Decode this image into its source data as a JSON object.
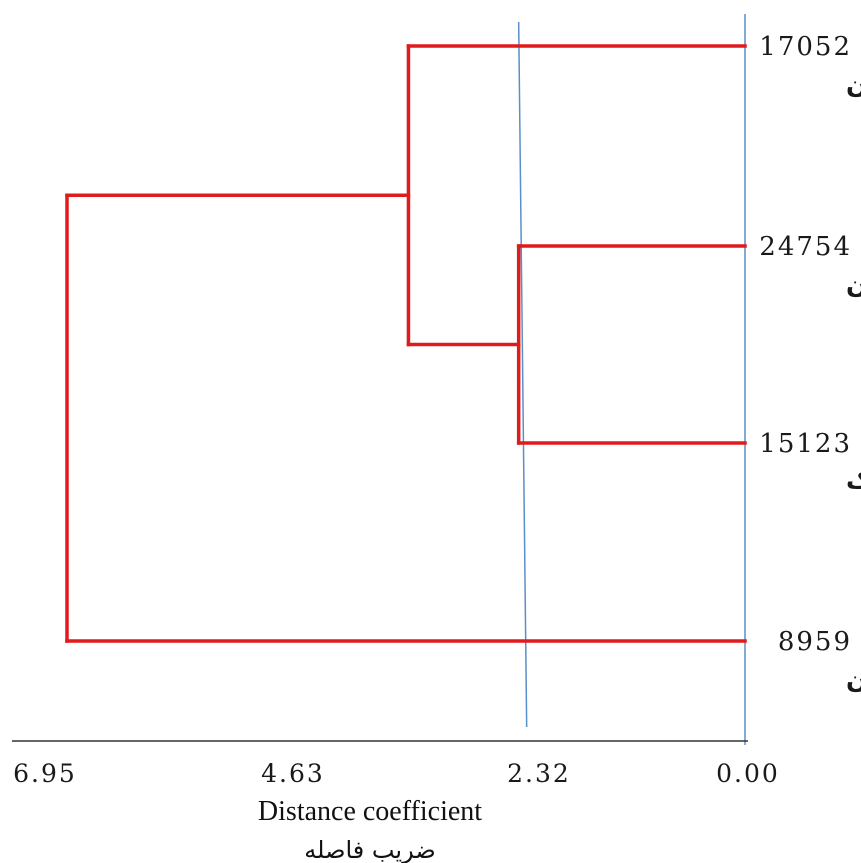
{
  "chart_data": {
    "type": "dendrogram",
    "xlabel": "Distance coefficient",
    "xlabel_secondary": "ضریب فاصله",
    "x_ticks": [
      "6.95",
      "4.63",
      "2.32",
      "0.00"
    ],
    "xlim": [
      6.95,
      0
    ],
    "leaves": [
      {
        "code": "17052",
        "name": "قزوین"
      },
      {
        "code": "24754",
        "name": "قره‌چمن"
      },
      {
        "code": "15123",
        "name": "اراک"
      },
      {
        "code": "8959",
        "name": "بروجن"
      }
    ],
    "merges": [
      {
        "members": [
          "24754",
          "15123"
        ],
        "distance": 2.32
      },
      {
        "members": [
          "17052",
          "24754",
          "15123"
        ],
        "distance": 3.45
      },
      {
        "members": [
          "17052",
          "24754",
          "15123",
          "8959"
        ],
        "distance": 6.95
      }
    ],
    "reference_lines": [
      2.32,
      0.0
    ],
    "colors": {
      "branch": "#e01b1b",
      "reference_line": "#5b8fc9",
      "axis": "#333333"
    }
  }
}
